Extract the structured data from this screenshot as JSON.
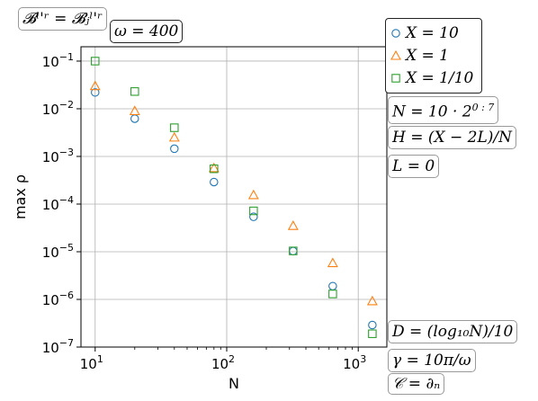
{
  "chart_data": {
    "type": "scatter",
    "xscale": "log",
    "yscale": "log",
    "xlabel": "N",
    "ylabel": "max ρ",
    "xlim": [
      7.8,
      1650
    ],
    "ylim": [
      1e-07,
      0.2
    ],
    "grid": true,
    "legend_position": "outside-right-top",
    "xticks": [
      {
        "value": 10,
        "base": "10",
        "exp": "1"
      },
      {
        "value": 100,
        "base": "10",
        "exp": "2"
      },
      {
        "value": 1000,
        "base": "10",
        "exp": "3"
      }
    ],
    "yticks": [
      {
        "value": 0.1,
        "base": "10",
        "exp": "−1"
      },
      {
        "value": 0.01,
        "base": "10",
        "exp": "−2"
      },
      {
        "value": 0.001,
        "base": "10",
        "exp": "−3"
      },
      {
        "value": 0.0001,
        "base": "10",
        "exp": "−4"
      },
      {
        "value": 1e-05,
        "base": "10",
        "exp": "−5"
      },
      {
        "value": 1e-06,
        "base": "10",
        "exp": "−6"
      },
      {
        "value": 1e-07,
        "base": "10",
        "exp": "−7"
      }
    ],
    "x": [
      10,
      20,
      40,
      80,
      160,
      320,
      640,
      1280
    ],
    "series": [
      {
        "name": "X = 10",
        "marker": "circle",
        "color": "#1f77b4",
        "values": [
          0.022,
          0.0062,
          0.00145,
          0.00029,
          5.4e-05,
          1.03e-05,
          1.9e-06,
          2.9e-07
        ]
      },
      {
        "name": "X = 1",
        "marker": "triangle",
        "color": "#ff7f0e",
        "values": [
          0.03,
          0.009,
          0.0025,
          0.00057,
          0.000155,
          3.5e-05,
          5.8e-06,
          9.2e-07
        ]
      },
      {
        "name": "X = 1/10",
        "marker": "square",
        "color": "#2ca02c",
        "values": [
          0.1,
          0.023,
          0.004,
          0.00055,
          7.2e-05,
          1.04e-05,
          1.3e-06,
          1.9e-07
        ]
      }
    ]
  },
  "annotations": {
    "top_left_box": "𝓑ˡ'ʳ = 𝓑ⱼˡ'ʳ",
    "omega": "ω = 400",
    "n_def": "N = 10 · 2^{0:7}",
    "n_def_prefix": "N = 10 · 2",
    "n_def_sup": "0 : 7",
    "h_def": "H = (X − 2L)/N",
    "l_def": "L = 0",
    "d_def": "D = (log₁₀N)/10",
    "gamma_def": "γ = 10π/ω",
    "c_def": "𝒞 = ∂ₙ"
  }
}
